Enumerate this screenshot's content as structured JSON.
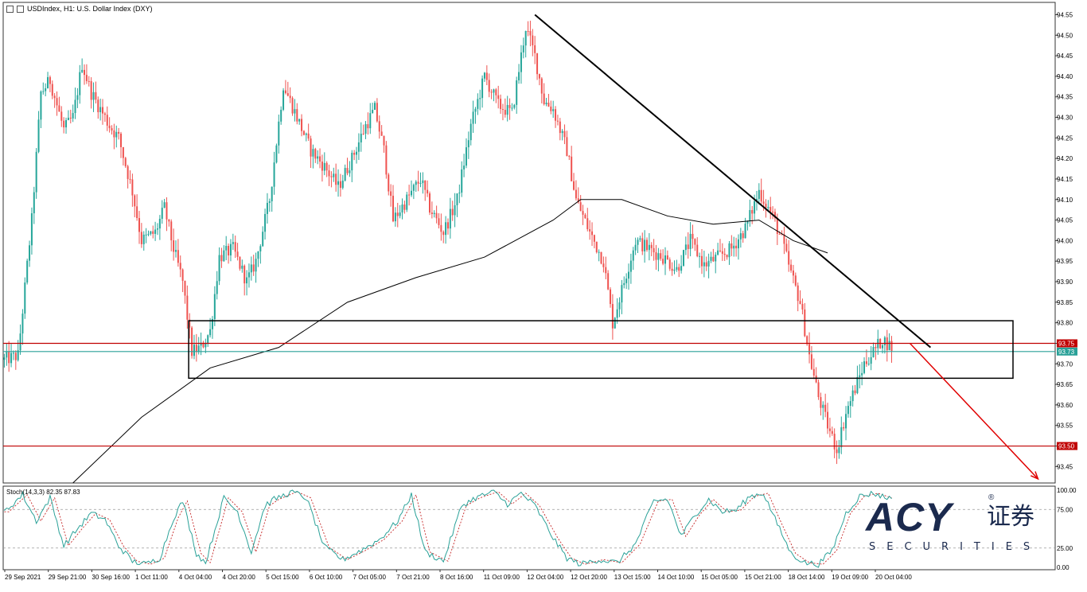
{
  "header": {
    "symbol_label": "USDIndex, H1:  U.S. Dollar Index (DXY)"
  },
  "stoch_label": "Stoch(14,3,3) 82.35 87.83",
  "logo": {
    "main": "ACY",
    "chinese": "证券",
    "sub": "SECURITIES",
    "reg": "®"
  },
  "colors": {
    "bull": "#26a69a",
    "bear": "#ef5350",
    "resistance": "#c00000",
    "current_price": "#2aa198",
    "ma": "#000000",
    "stoch_main": "#2aa198",
    "stoch_signal": "#c62828"
  },
  "chart_data": {
    "type": "candlestick",
    "instrument": "USDIndex",
    "timeframe": "H1",
    "ylim": [
      93.41,
      94.58
    ],
    "y_ticks": [
      "94.55",
      "94.50",
      "94.45",
      "94.40",
      "94.35",
      "94.30",
      "94.25",
      "94.20",
      "94.15",
      "94.10",
      "94.05",
      "94.00",
      "93.95",
      "93.90",
      "93.85",
      "93.80",
      "93.75",
      "93.70",
      "93.65",
      "93.60",
      "93.55",
      "93.50",
      "93.45"
    ],
    "x_tick_labels": [
      "29 Sep 2021",
      "29 Sep 21:00",
      "30 Sep 16:00",
      "1 Oct 11:00",
      "4 Oct 04:00",
      "4 Oct 20:00",
      "5 Oct 15:00",
      "6 Oct 10:00",
      "7 Oct 05:00",
      "7 Oct 21:00",
      "8 Oct 16:00",
      "11 Oct 09:00",
      "12 Oct 04:00",
      "12 Oct 20:00",
      "13 Oct 15:00",
      "14 Oct 10:00",
      "15 Oct 05:00",
      "15 Oct 21:00",
      "18 Oct 14:00",
      "19 Oct 09:00",
      "20 Oct 04:00"
    ],
    "price_path": [
      [
        0,
        93.71
      ],
      [
        6,
        93.72
      ],
      [
        12,
        94.05
      ],
      [
        16,
        94.36
      ],
      [
        20,
        94.39
      ],
      [
        26,
        94.27
      ],
      [
        30,
        94.3
      ],
      [
        34,
        94.43
      ],
      [
        38,
        94.36
      ],
      [
        42,
        94.32
      ],
      [
        46,
        94.28
      ],
      [
        50,
        94.25
      ],
      [
        56,
        94.12
      ],
      [
        60,
        94.0
      ],
      [
        66,
        94.02
      ],
      [
        70,
        94.08
      ],
      [
        74,
        93.98
      ],
      [
        78,
        93.9
      ],
      [
        82,
        93.73
      ],
      [
        86,
        93.74
      ],
      [
        90,
        93.78
      ],
      [
        94,
        93.96
      ],
      [
        100,
        93.98
      ],
      [
        106,
        93.9
      ],
      [
        110,
        93.95
      ],
      [
        116,
        94.1
      ],
      [
        122,
        94.38
      ],
      [
        128,
        94.3
      ],
      [
        134,
        94.22
      ],
      [
        140,
        94.18
      ],
      [
        146,
        94.13
      ],
      [
        152,
        94.2
      ],
      [
        158,
        94.28
      ],
      [
        162,
        94.32
      ],
      [
        166,
        94.22
      ],
      [
        170,
        94.05
      ],
      [
        176,
        94.1
      ],
      [
        182,
        94.15
      ],
      [
        186,
        94.08
      ],
      [
        192,
        94.02
      ],
      [
        198,
        94.1
      ],
      [
        204,
        94.28
      ],
      [
        210,
        94.4
      ],
      [
        216,
        94.33
      ],
      [
        222,
        94.31
      ],
      [
        228,
        94.52
      ],
      [
        232,
        94.45
      ],
      [
        236,
        94.34
      ],
      [
        240,
        94.32
      ],
      [
        246,
        94.22
      ],
      [
        250,
        94.1
      ],
      [
        256,
        94.02
      ],
      [
        262,
        93.95
      ],
      [
        266,
        93.8
      ],
      [
        270,
        93.88
      ],
      [
        276,
        94.0
      ],
      [
        282,
        93.98
      ],
      [
        288,
        93.96
      ],
      [
        294,
        93.93
      ],
      [
        300,
        94.0
      ],
      [
        306,
        93.94
      ],
      [
        312,
        93.96
      ],
      [
        318,
        93.98
      ],
      [
        324,
        94.03
      ],
      [
        330,
        94.12
      ],
      [
        336,
        94.06
      ],
      [
        340,
        94.0
      ],
      [
        344,
        93.92
      ],
      [
        348,
        93.85
      ],
      [
        352,
        93.72
      ],
      [
        356,
        93.62
      ],
      [
        360,
        93.55
      ],
      [
        364,
        93.49
      ],
      [
        368,
        93.58
      ],
      [
        372,
        93.64
      ],
      [
        376,
        93.7
      ],
      [
        380,
        93.73
      ],
      [
        384,
        93.76
      ],
      [
        388,
        93.74
      ]
    ],
    "ma": {
      "name": "",
      "points": [
        [
          30,
          93.41
        ],
        [
          60,
          93.57
        ],
        [
          90,
          93.69
        ],
        [
          120,
          93.74
        ],
        [
          150,
          93.85
        ],
        [
          180,
          93.91
        ],
        [
          210,
          93.96
        ],
        [
          240,
          94.05
        ],
        [
          252,
          94.1
        ],
        [
          270,
          94.1
        ],
        [
          290,
          94.06
        ],
        [
          310,
          94.04
        ],
        [
          330,
          94.05
        ],
        [
          345,
          94.0
        ],
        [
          360,
          93.97
        ]
      ]
    },
    "levels": [
      {
        "name": "resistance",
        "value": 93.75,
        "label": "93.75"
      },
      {
        "name": "current",
        "value": 93.73,
        "label": "93.73"
      },
      {
        "name": "support",
        "value": 93.5,
        "label": "93.50"
      }
    ],
    "zone": {
      "y_top": 93.805,
      "y_bottom": 93.665
    },
    "trendline": {
      "from": [
        232,
        94.55
      ],
      "to": [
        405,
        93.74
      ]
    },
    "projection_arrow": {
      "from": [
        396,
        93.75
      ],
      "to": [
        452,
        93.42
      ]
    },
    "bars_total": 460,
    "stochastic": {
      "params": "14,3,3",
      "main": 82.35,
      "signal": 87.83,
      "levels": [
        75,
        25
      ],
      "ylim": [
        0,
        100
      ],
      "y_ticks": [
        "100.00",
        "75.00",
        "25.00",
        "0.00"
      ],
      "path": [
        [
          0,
          72
        ],
        [
          8,
          94
        ],
        [
          14,
          60
        ],
        [
          20,
          90
        ],
        [
          26,
          28
        ],
        [
          32,
          50
        ],
        [
          38,
          70
        ],
        [
          44,
          62
        ],
        [
          50,
          28
        ],
        [
          56,
          8
        ],
        [
          62,
          4
        ],
        [
          68,
          12
        ],
        [
          74,
          64
        ],
        [
          78,
          86
        ],
        [
          84,
          18
        ],
        [
          88,
          6
        ],
        [
          96,
          90
        ],
        [
          102,
          72
        ],
        [
          108,
          20
        ],
        [
          114,
          80
        ],
        [
          118,
          88
        ],
        [
          126,
          98
        ],
        [
          132,
          90
        ],
        [
          140,
          26
        ],
        [
          148,
          10
        ],
        [
          156,
          22
        ],
        [
          164,
          36
        ],
        [
          172,
          60
        ],
        [
          178,
          94
        ],
        [
          184,
          20
        ],
        [
          192,
          8
        ],
        [
          200,
          80
        ],
        [
          206,
          90
        ],
        [
          214,
          98
        ],
        [
          220,
          82
        ],
        [
          226,
          96
        ],
        [
          232,
          80
        ],
        [
          240,
          38
        ],
        [
          246,
          12
        ],
        [
          252,
          4
        ],
        [
          260,
          10
        ],
        [
          268,
          6
        ],
        [
          276,
          30
        ],
        [
          284,
          86
        ],
        [
          290,
          88
        ],
        [
          296,
          40
        ],
        [
          302,
          68
        ],
        [
          308,
          88
        ],
        [
          314,
          72
        ],
        [
          320,
          74
        ],
        [
          326,
          92
        ],
        [
          332,
          96
        ],
        [
          338,
          56
        ],
        [
          344,
          18
        ],
        [
          350,
          6
        ],
        [
          356,
          4
        ],
        [
          362,
          22
        ],
        [
          368,
          70
        ],
        [
          374,
          92
        ],
        [
          380,
          96
        ],
        [
          386,
          90
        ]
      ]
    }
  }
}
